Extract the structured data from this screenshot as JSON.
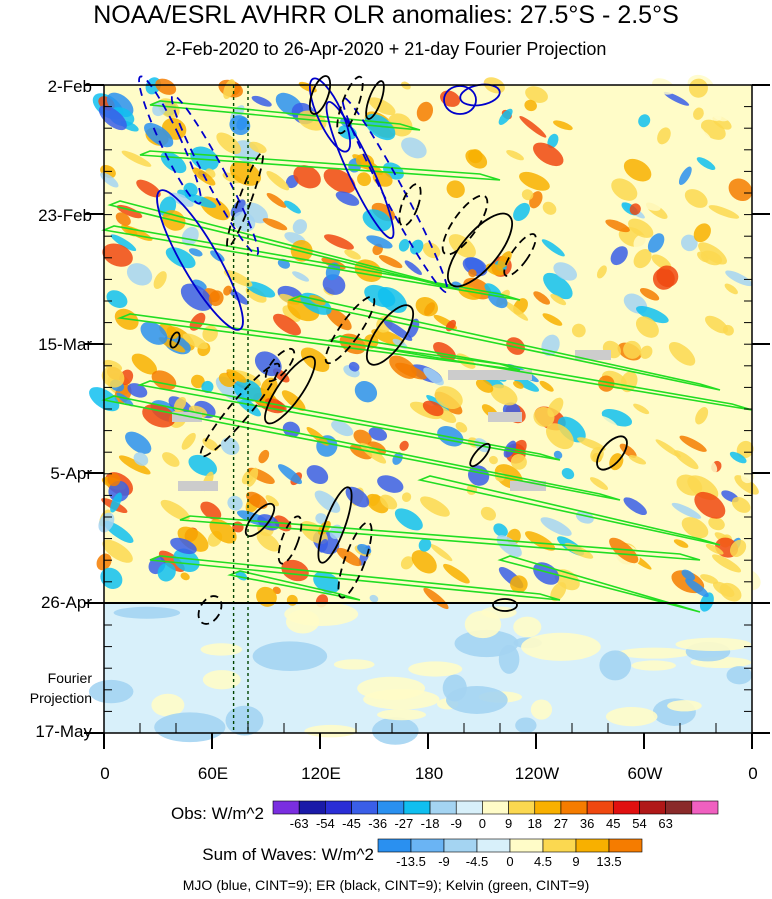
{
  "title": "NOAA/ESRL AVHRR OLR anomalies: 27.5°S - 2.5°S",
  "subtitle": "2-Feb-2020 to 26-Apr-2020 + 21-day Fourier Projection",
  "y_labels": [
    "2-Feb",
    "23-Feb",
    "15-Mar",
    "5-Apr",
    "26-Apr",
    "17-May"
  ],
  "fourier_label": [
    "Fourier",
    "Projection"
  ],
  "x_labels": [
    "0",
    "60E",
    "120E",
    "180",
    "120W",
    "60W",
    "0"
  ],
  "obs_colorbar": {
    "title": "Obs: W/m^2",
    "labels": [
      "-63",
      "-54",
      "-45",
      "-36",
      "-27",
      "-18",
      "-9",
      "0",
      "9",
      "18",
      "27",
      "36",
      "45",
      "54",
      "63"
    ],
    "colors": [
      "#7a2ee0",
      "#1a1aa8",
      "#2a2ed6",
      "#3a5ee8",
      "#2a90f0",
      "#10bff0",
      "#a4d4f2",
      "#d8f0fa",
      "#fffcc8",
      "#fbd850",
      "#f8b000",
      "#f57c00",
      "#f04810",
      "#e01010",
      "#b01818",
      "#8a2a2a",
      "#f060c0"
    ]
  },
  "waves_colorbar": {
    "title": "Sum of Waves: W/m^2",
    "labels": [
      "-13.5",
      "-9",
      "-4.5",
      "0",
      "4.5",
      "9",
      "13.5"
    ],
    "colors": [
      "#2a90f0",
      "#6ab4f4",
      "#a4d4f2",
      "#d8f0fa",
      "#fffcc8",
      "#fbd850",
      "#f8b000",
      "#f57c00"
    ]
  },
  "footer": "MJO (blue, CINT=9); ER (black, CINT=9); Kelvin (green, CINT=9)",
  "chart_data": {
    "type": "heatmap",
    "description_axes": {
      "x": "longitude (0 to 360)",
      "y": "date from 2-Feb-2020 to 17-May-2020",
      "observed_period_end": "26-Apr",
      "projection_period": "26-Apr to 17-May"
    },
    "xlim": [
      0,
      360
    ],
    "x_ticks": [
      0,
      60,
      120,
      180,
      240,
      300,
      360
    ],
    "y_ticks": [
      "2-Feb",
      "23-Feb",
      "15-Mar",
      "5-Apr",
      "26-Apr",
      "17-May"
    ],
    "legend_series": [
      "MJO",
      "ER",
      "Kelvin"
    ],
    "series_colors": {
      "MJO": "#0000cc",
      "ER": "#000000",
      "Kelvin": "#22dd22"
    },
    "contour_interval": 9,
    "reference_lines_lon": [
      72,
      80
    ]
  }
}
